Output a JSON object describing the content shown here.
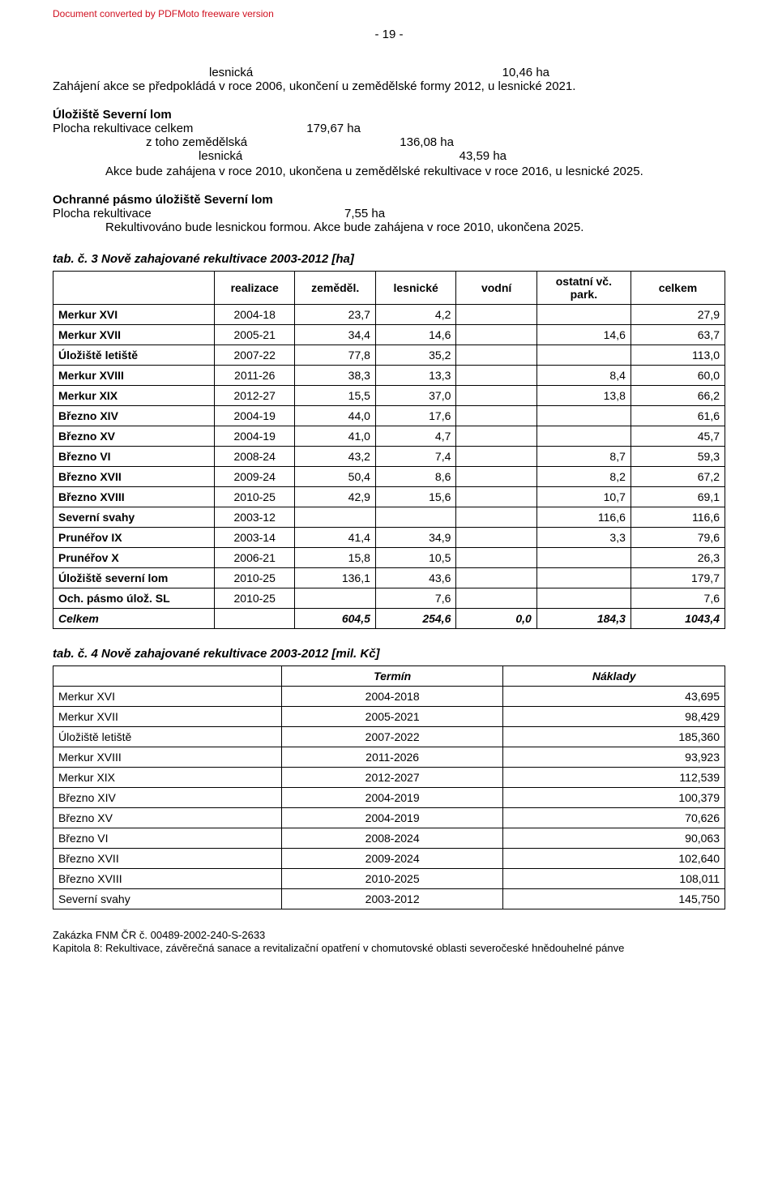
{
  "watermark": "Document converted by PDFMoto freeware version",
  "pagenum": "- 19 -",
  "block1": {
    "l1a": "lesnická",
    "l1b": "10,46 ha",
    "text": "Zahájení akce se předpokládá v roce 2006, ukončení u zemědělské formy 2012, u lesnické 2021."
  },
  "block2": {
    "title": "Úložiště Severní lom",
    "r1a": "Plocha rekultivace  celkem",
    "r1b": "179,67 ha",
    "r2a": "z toho   zemědělská",
    "r2b": "136,08 ha",
    "r3a": "lesnická",
    "r3b": "43,59 ha",
    "text": "Akce bude zahájena v roce 2010, ukončena u zemědělské rekultivace v roce 2016, u lesnické 2025."
  },
  "block3": {
    "title": "Ochranné pásmo úložiště Severní lom",
    "r1a": "Plocha rekultivace",
    "r1b": "7,55 ha",
    "text": "Rekultivováno bude lesnickou formou. Akce bude zahájena v roce 2010, ukončena 2025."
  },
  "t3": {
    "caption": "tab. č. 3   Nově zahajované rekultivace 2003-2012 [ha]",
    "headers": [
      "",
      "realizace",
      "zeměděl.",
      "lesnické",
      "vodní",
      "ostatní vč. park.",
      "celkem"
    ],
    "rows": [
      [
        "Merkur XVI",
        "2004-18",
        "23,7",
        "4,2",
        "",
        "",
        "27,9"
      ],
      [
        "Merkur XVII",
        "2005-21",
        "34,4",
        "14,6",
        "",
        "14,6",
        "63,7"
      ],
      [
        "Úložiště letiště",
        "2007-22",
        "77,8",
        "35,2",
        "",
        "",
        "113,0"
      ],
      [
        "Merkur XVIII",
        "2011-26",
        "38,3",
        "13,3",
        "",
        "8,4",
        "60,0"
      ],
      [
        "Merkur XIX",
        "2012-27",
        "15,5",
        "37,0",
        "",
        "13,8",
        "66,2"
      ],
      [
        "Březno XIV",
        "2004-19",
        "44,0",
        "17,6",
        "",
        "",
        "61,6"
      ],
      [
        "Březno XV",
        "2004-19",
        "41,0",
        "4,7",
        "",
        "",
        "45,7"
      ],
      [
        "Březno VI",
        "2008-24",
        "43,2",
        "7,4",
        "",
        "8,7",
        "59,3"
      ],
      [
        "Březno XVII",
        "2009-24",
        "50,4",
        "8,6",
        "",
        "8,2",
        "67,2"
      ],
      [
        "Březno XVIII",
        "2010-25",
        "42,9",
        "15,6",
        "",
        "10,7",
        "69,1"
      ],
      [
        "Severní svahy",
        "2003-12",
        "",
        "",
        "",
        "116,6",
        "116,6"
      ],
      [
        "Prunéřov IX",
        "2003-14",
        "41,4",
        "34,9",
        "",
        "3,3",
        "79,6"
      ],
      [
        "Prunéřov X",
        "2006-21",
        "15,8",
        "10,5",
        "",
        "",
        "26,3"
      ],
      [
        "Úložiště severní lom",
        "2010-25",
        "136,1",
        "43,6",
        "",
        "",
        "179,7"
      ],
      [
        "Och. pásmo úlož. SL",
        "2010-25",
        "",
        "7,6",
        "",
        "",
        "7,6"
      ]
    ],
    "totalRow": [
      "Celkem",
      "",
      "604,5",
      "254,6",
      "0,0",
      "184,3",
      "1043,4"
    ]
  },
  "t4": {
    "caption": "tab. č. 4   Nově zahajované rekultivace 2003-2012 [mil. Kč]",
    "headers": [
      "",
      "Termín",
      "Náklady"
    ],
    "rows": [
      [
        "Merkur XVI",
        "2004-2018",
        "43,695"
      ],
      [
        "Merkur XVII",
        "2005-2021",
        "98,429"
      ],
      [
        "Úložiště letiště",
        "2007-2022",
        "185,360"
      ],
      [
        "Merkur XVIII",
        "2011-2026",
        "93,923"
      ],
      [
        "Merkur XIX",
        "2012-2027",
        "112,539"
      ],
      [
        "Březno XIV",
        "2004-2019",
        "100,379"
      ],
      [
        "Březno XV",
        "2004-2019",
        "70,626"
      ],
      [
        "Březno VI",
        "2008-2024",
        "90,063"
      ],
      [
        "Březno XVII",
        "2009-2024",
        "102,640"
      ],
      [
        "Březno XVIII",
        "2010-2025",
        "108,011"
      ],
      [
        "Severní svahy",
        "2003-2012",
        "145,750"
      ]
    ]
  },
  "footer": {
    "l1": "Zakázka FNM ČR č. 00489-2002-240-S-2633",
    "l2": "Kapitola 8: Rekultivace, závěrečná sanace a revitalizační opatření v chomutovské oblasti severočeské hnědouhelné pánve"
  }
}
